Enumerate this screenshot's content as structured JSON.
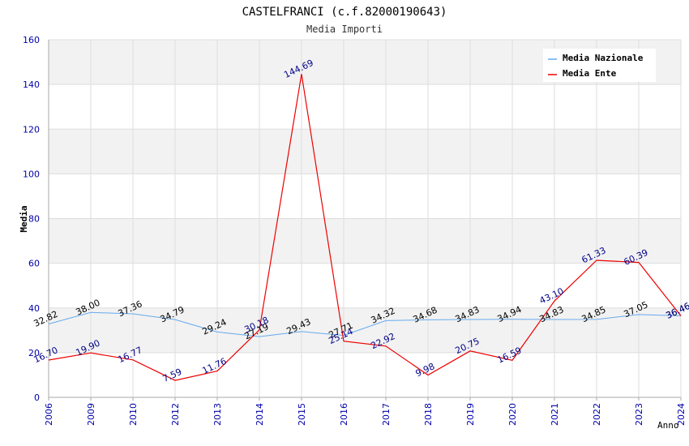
{
  "chart_data": {
    "type": "line",
    "title": "CASTELFRANCI (c.f.82000190643)",
    "subtitle": "Media Importi",
    "xlabel": "Anno",
    "ylabel": "Media",
    "ylim": [
      0,
      160
    ],
    "yticks": [
      0,
      20,
      40,
      60,
      80,
      100,
      120,
      140,
      160
    ],
    "categories": [
      "2006",
      "2009",
      "2010",
      "2012",
      "2013",
      "2014",
      "2015",
      "2016",
      "2017",
      "2018",
      "2019",
      "2020",
      "2021",
      "2022",
      "2023",
      "2024"
    ],
    "series": [
      {
        "name": "Media Nazionale",
        "color": "#66aaee",
        "label_color": "#000000",
        "values": [
          32.82,
          38.0,
          37.36,
          34.79,
          29.24,
          27.19,
          29.43,
          27.71,
          34.32,
          34.68,
          34.83,
          34.94,
          34.83,
          34.85,
          37.05,
          36.46
        ],
        "labels": [
          "32.82",
          "38.00",
          "37.36",
          "34.79",
          "29.24",
          "27.19",
          "29.43",
          "27.71",
          "34.32",
          "34.68",
          "34.83",
          "34.94",
          "34.83",
          "34.85",
          "37.05",
          "36.46"
        ]
      },
      {
        "name": "Media Ente",
        "color": "#ee0000",
        "label_color": "#000088",
        "values": [
          16.7,
          19.9,
          16.77,
          7.59,
          11.76,
          30.18,
          144.69,
          25.14,
          22.92,
          9.98,
          20.75,
          16.59,
          43.1,
          61.33,
          60.39,
          36.46
        ],
        "labels": [
          "16.70",
          "19.90",
          "16.77",
          "7.59",
          "11.76",
          "30.18",
          "144.69",
          "25.14",
          "22.92",
          "9.98",
          "20.75",
          "16.59",
          "43.10",
          "61.33",
          "60.39",
          "36.46"
        ]
      }
    ],
    "legend_position": "top-right",
    "grid": true,
    "colors": {
      "band": "#f2f2f2",
      "grid": "#dddddd",
      "axis": "#aaaaaa",
      "tick_label": "#0000aa",
      "title": "#000000",
      "subtitle": "#333333"
    }
  }
}
